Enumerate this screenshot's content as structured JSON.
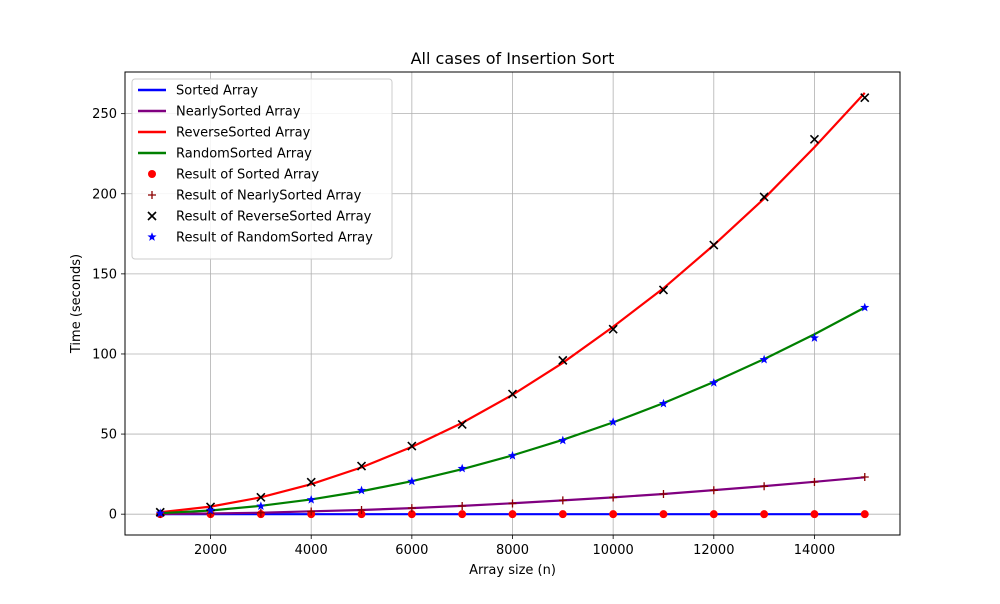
{
  "chart_data": {
    "type": "line",
    "title": "All cases of Insertion Sort",
    "xlabel": "Array size (n)",
    "ylabel": "Time (seconds)",
    "xlim": [
      300,
      15700
    ],
    "ylim": [
      -13,
      276
    ],
    "xticks": [
      2000,
      4000,
      6000,
      8000,
      10000,
      12000,
      14000
    ],
    "yticks": [
      0,
      50,
      100,
      150,
      200,
      250
    ],
    "grid": true,
    "legend_position": "top-left",
    "x": [
      1000,
      2000,
      3000,
      4000,
      5000,
      6000,
      7000,
      8000,
      9000,
      10000,
      11000,
      12000,
      13000,
      14000,
      15000
    ],
    "series": [
      {
        "name": "Sorted Array",
        "kind": "line",
        "color": "#0000ff",
        "values": [
          0,
          0,
          0,
          0,
          0,
          0,
          0,
          0,
          0,
          0,
          0,
          0,
          0,
          0,
          0
        ]
      },
      {
        "name": "NearlySorted Array",
        "kind": "line",
        "color": "#800080",
        "values": [
          0.1,
          0.4,
          0.9,
          1.8,
          2.6,
          3.8,
          5.2,
          6.8,
          8.6,
          10.5,
          12.6,
          15.0,
          17.5,
          20.2,
          23.0
        ]
      },
      {
        "name": "ReverseSorted Array",
        "kind": "line",
        "color": "#ff0000",
        "values": [
          1.2,
          4.7,
          10.5,
          18.7,
          29.2,
          42.0,
          57.0,
          74.5,
          94.5,
          117.0,
          141.0,
          168.0,
          197.0,
          229.0,
          263.0
        ]
      },
      {
        "name": "RandomSorted Array",
        "kind": "line",
        "color": "#008000",
        "values": [
          0.6,
          2.3,
          5.2,
          9.2,
          14.3,
          20.6,
          28.1,
          36.7,
          46.4,
          57.3,
          69.3,
          82.5,
          96.8,
          112.3,
          129.0
        ]
      },
      {
        "name": "Result of Sorted Array",
        "kind": "scatter",
        "marker": "circle",
        "color": "#ff0000",
        "values": [
          0,
          0,
          0,
          0,
          0,
          0,
          0,
          0,
          0,
          0,
          0,
          0,
          0,
          0,
          0
        ]
      },
      {
        "name": "Result of NearlySorted Array",
        "kind": "scatter",
        "marker": "plus",
        "color": "#8b0000",
        "values": [
          0.1,
          0.4,
          0.9,
          1.7,
          2.6,
          3.8,
          5.1,
          6.7,
          8.6,
          10.4,
          12.6,
          14.9,
          17.4,
          20.1,
          23.2
        ]
      },
      {
        "name": "Result of ReverseSorted Array",
        "kind": "scatter",
        "marker": "x",
        "color": "#000000",
        "values": [
          1.2,
          4.5,
          10.5,
          20.0,
          30.0,
          42.5,
          56.0,
          75.0,
          96.0,
          115.5,
          140.0,
          168.0,
          198.0,
          234.0,
          260.0
        ]
      },
      {
        "name": "Result of RandomSorted Array",
        "kind": "scatter",
        "marker": "star",
        "color": "#0000ff",
        "values": [
          0.6,
          2.4,
          5.0,
          9.0,
          14.8,
          20.5,
          28.5,
          36.5,
          46.0,
          57.5,
          69.0,
          82.0,
          96.5,
          110.0,
          129.0
        ]
      }
    ]
  }
}
